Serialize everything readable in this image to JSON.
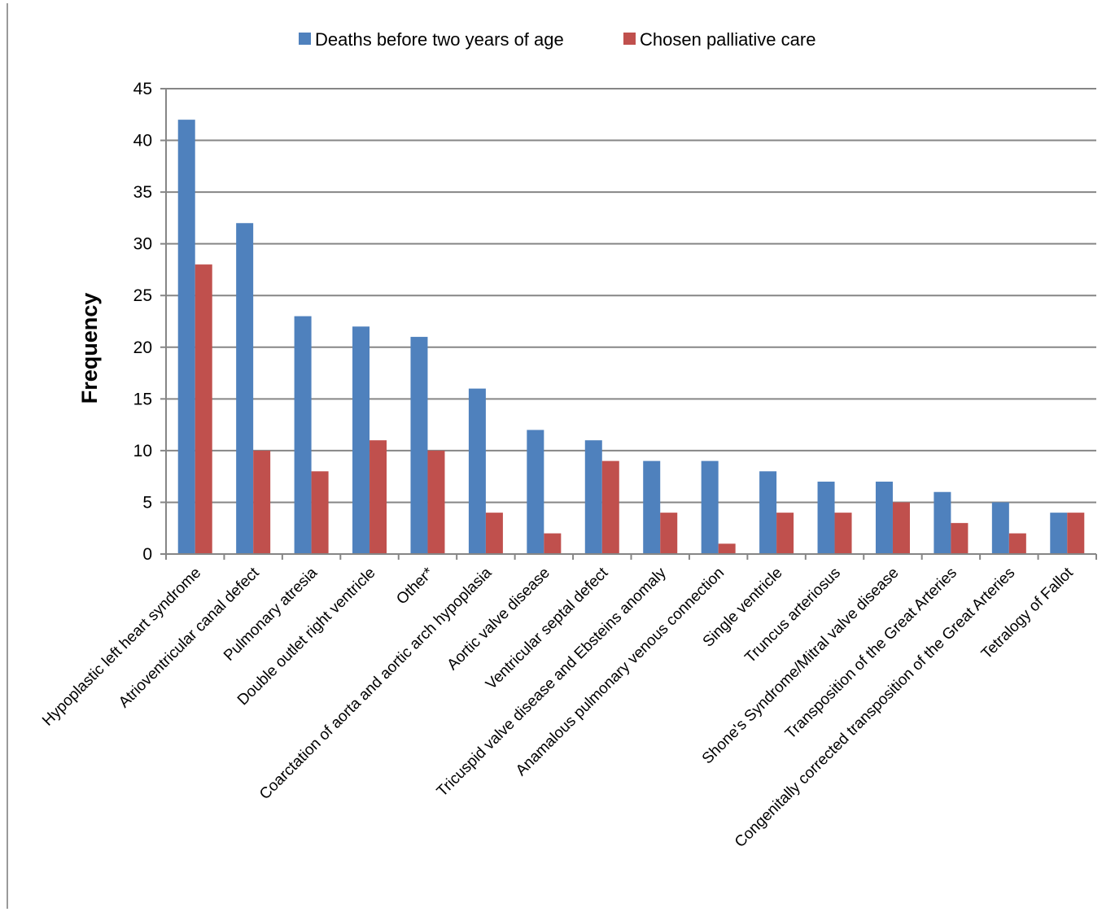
{
  "chart_data": {
    "type": "bar",
    "title": "",
    "xlabel": "",
    "ylabel": "Frequency",
    "ylim": [
      0,
      45
    ],
    "yticks": [
      0,
      5,
      10,
      15,
      20,
      25,
      30,
      35,
      40,
      45
    ],
    "grid": true,
    "legend_position": "top",
    "categories": [
      "Hypoplastic left heart syndrome",
      "Atrioventricular canal defect",
      "Pulmonary atresia",
      "Double outlet right ventricle",
      "Other*",
      "Coarctation of aorta and aortic arch hypoplasia",
      "Aortic valve disease",
      "Ventricular septal defect",
      "Tricuspid valve disease and Ebsteins anomaly",
      "Anamalous pulmonary venous connection",
      "Single ventricle",
      "Truncus arteriosus",
      "Shone's Syndrome/Mitral valve disease",
      "Transposition of the Great Arteries",
      "Congenitally corrected transposition of the Great Arteries",
      "Tetralogy of Fallot"
    ],
    "series": [
      {
        "name": "Deaths before two years of age",
        "color": "#4F81BD",
        "values": [
          42,
          32,
          23,
          22,
          21,
          16,
          12,
          11,
          9,
          9,
          8,
          7,
          7,
          6,
          5,
          4
        ]
      },
      {
        "name": "Chosen palliative care",
        "color": "#C0504D",
        "values": [
          28,
          10,
          8,
          11,
          10,
          4,
          2,
          9,
          4,
          1,
          4,
          4,
          5,
          3,
          2,
          4
        ]
      }
    ]
  }
}
